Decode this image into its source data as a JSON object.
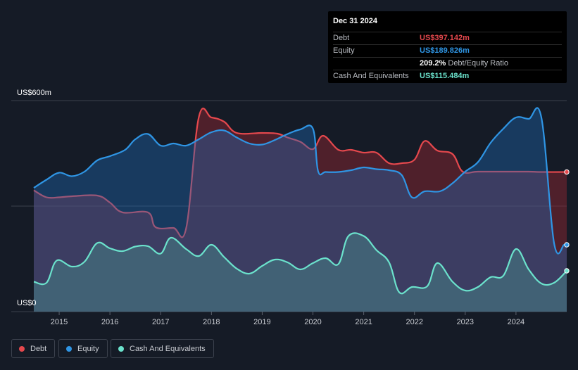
{
  "tooltip": {
    "date": "Dec 31 2024",
    "rows": [
      {
        "label": "Debt",
        "value": "US$397.142m",
        "color": "#e5484d"
      },
      {
        "label": "Equity",
        "value": "US$189.826m",
        "color": "#2f95e4"
      },
      {
        "label": "",
        "value": "209.2%",
        "suffix": "Debt/Equity Ratio",
        "color": "#ffffff"
      },
      {
        "label": "Cash And Equivalents",
        "value": "US$115.484m",
        "color": "#6be2cc"
      }
    ]
  },
  "legend": [
    {
      "label": "Debt",
      "color": "#e5484d"
    },
    {
      "label": "Equity",
      "color": "#2f95e4"
    },
    {
      "label": "Cash And Equivalents",
      "color": "#6be2cc"
    }
  ],
  "chart_data": {
    "type": "area",
    "y_top_label": "US$600m",
    "y_bottom_label": "US$0",
    "ylim": [
      0,
      600
    ],
    "xlim": [
      2014.5,
      2025.0
    ],
    "x_ticks": [
      "2015",
      "2016",
      "2017",
      "2018",
      "2019",
      "2020",
      "2021",
      "2022",
      "2023",
      "2024"
    ],
    "grid": true,
    "legend_position": "bottom-left",
    "series": [
      {
        "name": "Debt",
        "color": "#e5484d",
        "points": [
          [
            2014.5,
            345
          ],
          [
            2014.75,
            325
          ],
          [
            2015.0,
            325
          ],
          [
            2015.25,
            328
          ],
          [
            2015.75,
            330
          ],
          [
            2016.0,
            310
          ],
          [
            2016.25,
            282
          ],
          [
            2016.75,
            282
          ],
          [
            2016.9,
            240
          ],
          [
            2017.25,
            238
          ],
          [
            2017.5,
            236
          ],
          [
            2017.75,
            552
          ],
          [
            2018.0,
            552
          ],
          [
            2018.25,
            540
          ],
          [
            2018.5,
            508
          ],
          [
            2019.0,
            508
          ],
          [
            2019.3,
            506
          ],
          [
            2019.5,
            495
          ],
          [
            2019.75,
            483
          ],
          [
            2020.0,
            462
          ],
          [
            2020.2,
            500
          ],
          [
            2020.5,
            460
          ],
          [
            2020.75,
            460
          ],
          [
            2021.0,
            452
          ],
          [
            2021.25,
            452
          ],
          [
            2021.5,
            422
          ],
          [
            2021.75,
            422
          ],
          [
            2022.0,
            432
          ],
          [
            2022.2,
            485
          ],
          [
            2022.45,
            458
          ],
          [
            2022.75,
            448
          ],
          [
            2022.95,
            398
          ],
          [
            2023.25,
            398
          ],
          [
            2023.75,
            398
          ],
          [
            2024.25,
            398
          ],
          [
            2024.5,
            397
          ],
          [
            2025.0,
            397
          ]
        ]
      },
      {
        "name": "Equity",
        "color": "#2f95e4",
        "points": [
          [
            2014.5,
            352
          ],
          [
            2014.75,
            375
          ],
          [
            2015.0,
            395
          ],
          [
            2015.25,
            385
          ],
          [
            2015.5,
            398
          ],
          [
            2015.75,
            430
          ],
          [
            2016.0,
            442
          ],
          [
            2016.3,
            460
          ],
          [
            2016.5,
            490
          ],
          [
            2016.75,
            505
          ],
          [
            2017.0,
            472
          ],
          [
            2017.25,
            478
          ],
          [
            2017.5,
            472
          ],
          [
            2017.75,
            490
          ],
          [
            2018.0,
            510
          ],
          [
            2018.25,
            515
          ],
          [
            2018.5,
            495
          ],
          [
            2018.75,
            478
          ],
          [
            2019.0,
            475
          ],
          [
            2019.25,
            488
          ],
          [
            2019.5,
            505
          ],
          [
            2019.75,
            518
          ],
          [
            2020.0,
            520
          ],
          [
            2020.1,
            400
          ],
          [
            2020.25,
            397
          ],
          [
            2020.5,
            397
          ],
          [
            2020.75,
            402
          ],
          [
            2021.0,
            410
          ],
          [
            2021.25,
            405
          ],
          [
            2021.5,
            402
          ],
          [
            2021.75,
            388
          ],
          [
            2021.95,
            325
          ],
          [
            2022.2,
            342
          ],
          [
            2022.5,
            342
          ],
          [
            2022.75,
            365
          ],
          [
            2023.0,
            398
          ],
          [
            2023.25,
            425
          ],
          [
            2023.5,
            480
          ],
          [
            2023.75,
            520
          ],
          [
            2024.0,
            552
          ],
          [
            2024.25,
            548
          ],
          [
            2024.5,
            552
          ],
          [
            2024.75,
            195
          ],
          [
            2024.95,
            190
          ],
          [
            2025.0,
            190
          ]
        ]
      },
      {
        "name": "Cash And Equivalents",
        "color": "#6be2cc",
        "points": [
          [
            2014.5,
            85
          ],
          [
            2014.75,
            82
          ],
          [
            2014.95,
            145
          ],
          [
            2015.25,
            128
          ],
          [
            2015.5,
            142
          ],
          [
            2015.75,
            195
          ],
          [
            2016.0,
            180
          ],
          [
            2016.25,
            172
          ],
          [
            2016.5,
            185
          ],
          [
            2016.75,
            186
          ],
          [
            2017.0,
            165
          ],
          [
            2017.2,
            210
          ],
          [
            2017.5,
            178
          ],
          [
            2017.75,
            158
          ],
          [
            2018.0,
            190
          ],
          [
            2018.25,
            155
          ],
          [
            2018.5,
            122
          ],
          [
            2018.75,
            108
          ],
          [
            2019.0,
            130
          ],
          [
            2019.25,
            148
          ],
          [
            2019.5,
            140
          ],
          [
            2019.75,
            120
          ],
          [
            2020.0,
            138
          ],
          [
            2020.25,
            152
          ],
          [
            2020.5,
            135
          ],
          [
            2020.7,
            215
          ],
          [
            2021.0,
            215
          ],
          [
            2021.25,
            175
          ],
          [
            2021.5,
            140
          ],
          [
            2021.7,
            55
          ],
          [
            2021.95,
            70
          ],
          [
            2022.25,
            72
          ],
          [
            2022.45,
            138
          ],
          [
            2022.75,
            85
          ],
          [
            2023.0,
            60
          ],
          [
            2023.25,
            70
          ],
          [
            2023.5,
            98
          ],
          [
            2023.75,
            102
          ],
          [
            2024.0,
            178
          ],
          [
            2024.25,
            120
          ],
          [
            2024.5,
            80
          ],
          [
            2024.75,
            82
          ],
          [
            2025.0,
            116
          ]
        ]
      }
    ]
  }
}
